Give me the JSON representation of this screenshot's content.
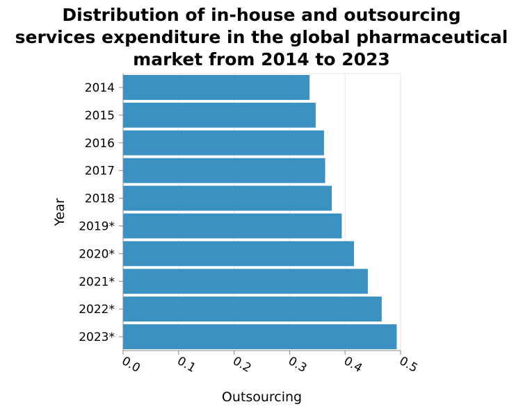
{
  "chart_data": {
    "type": "bar",
    "orientation": "horizontal",
    "title": "Distribution of in-house and outsourcing services expenditure in the global pharmaceutical market from 2014 to 2023",
    "title_lines": [
      "Distribution of in-house and outsourcing",
      "services expenditure in the global pharmaceutical",
      "market from 2014 to 2023"
    ],
    "xlabel": "Outsourcing",
    "ylabel": "Year",
    "categories": [
      "2014",
      "2015",
      "2016",
      "2017",
      "2018",
      "2019*",
      "2020*",
      "2021*",
      "2022*",
      "2023*"
    ],
    "values": [
      0.336,
      0.347,
      0.362,
      0.364,
      0.376,
      0.394,
      0.416,
      0.441,
      0.466,
      0.493
    ],
    "xlim": [
      0,
      0.5
    ],
    "xticks": [
      "0.0",
      "0.1",
      "0.2",
      "0.3",
      "0.4",
      "0.5"
    ],
    "grid": true,
    "legend": "none",
    "bar_color": "#3a91c2"
  }
}
